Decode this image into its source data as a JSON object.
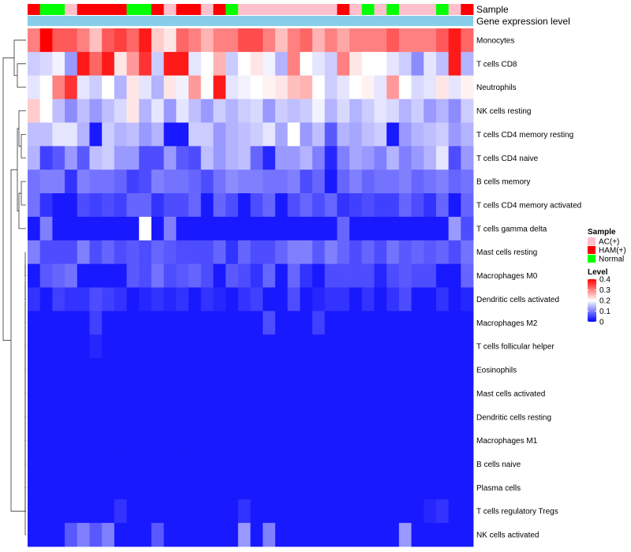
{
  "chart_data": {
    "type": "heatmap",
    "title": "",
    "annotation_tracks": [
      "Sample",
      "Gene expression level"
    ],
    "row_labels": [
      "Monocytes",
      "T cells CD8",
      "Neutrophils",
      "NK cells resting",
      "T cells CD4 memory resting",
      "T cells CD4 naive",
      "B cells memory",
      "T cells CD4 memory activated",
      "T cells gamma delta",
      "Mast cells resting",
      "Macrophages M0",
      "Dendritic cells activated",
      "Macrophages M2",
      "T cells follicular helper",
      "Eosinophils",
      "Mast cells activated",
      "Dendritic cells resting",
      "Macrophages M1",
      "B cells naive",
      "Plasma cells",
      "T cells regulatory  Tregs",
      "NK cells activated"
    ],
    "sample_groups": [
      "HAM",
      "NOR",
      "NOR",
      "AC",
      "HAM",
      "HAM",
      "HAM",
      "HAM",
      "NOR",
      "NOR",
      "HAM",
      "AC",
      "HAM",
      "HAM",
      "AC",
      "HAM",
      "NOR",
      "AC",
      "AC",
      "AC",
      "AC",
      "AC",
      "AC",
      "AC",
      "AC",
      "HAM",
      "AC",
      "NOR",
      "AC",
      "NOR",
      "AC",
      "AC",
      "AC",
      "NOR",
      "AC",
      "HAM"
    ],
    "sample_legend": {
      "title": "Sample",
      "items": [
        {
          "key": "AC",
          "label": "AC(+)",
          "color": "#ffc0cb"
        },
        {
          "key": "HAM",
          "label": "HAM(+)",
          "color": "#ff0000"
        },
        {
          "key": "NOR",
          "label": "Normal",
          "color": "#00ff00"
        }
      ]
    },
    "expression_track_color": "#87ceeb",
    "color_scale": {
      "title": "Level",
      "min": 0,
      "max": 0.4,
      "ticks": [
        0.4,
        0.3,
        0.2,
        0.1,
        0
      ],
      "tick_labels": [
        "0.4",
        "0.3",
        "0.2",
        "0.1",
        "0"
      ],
      "colors": [
        "#0000ff",
        "#ffffff",
        "#ff0000"
      ]
    },
    "values": [
      [
        0.3,
        0.4,
        0.33,
        0.33,
        0.3,
        0.25,
        0.33,
        0.35,
        0.32,
        0.38,
        0.24,
        0.22,
        0.32,
        0.3,
        0.26,
        0.3,
        0.3,
        0.34,
        0.34,
        0.3,
        0.25,
        0.3,
        0.32,
        0.26,
        0.3,
        0.27,
        0.3,
        0.3,
        0.3,
        0.33,
        0.3,
        0.3,
        0.3,
        0.33,
        0.38,
        0.32
      ],
      [
        0.16,
        0.17,
        0.19,
        0.12,
        0.38,
        0.32,
        0.38,
        0.22,
        0.28,
        0.36,
        0.16,
        0.38,
        0.38,
        0.18,
        0.2,
        0.26,
        0.16,
        0.2,
        0.22,
        0.19,
        0.14,
        0.3,
        0.2,
        0.18,
        0.16,
        0.3,
        0.22,
        0.2,
        0.2,
        0.18,
        0.16,
        0.11,
        0.18,
        0.15,
        0.38,
        0.14
      ],
      [
        0.18,
        0.2,
        0.3,
        0.36,
        0.18,
        0.16,
        0.2,
        0.14,
        0.22,
        0.18,
        0.14,
        0.22,
        0.19,
        0.28,
        0.2,
        0.38,
        0.18,
        0.19,
        0.2,
        0.21,
        0.22,
        0.25,
        0.26,
        0.2,
        0.16,
        0.18,
        0.2,
        0.21,
        0.18,
        0.28,
        0.2,
        0.17,
        0.18,
        0.22,
        0.18,
        0.21
      ],
      [
        0.24,
        0.2,
        0.15,
        0.11,
        0.15,
        0.12,
        0.15,
        0.17,
        0.22,
        0.14,
        0.18,
        0.12,
        0.18,
        0.15,
        0.12,
        0.16,
        0.14,
        0.16,
        0.17,
        0.12,
        0.16,
        0.15,
        0.16,
        0.19,
        0.14,
        0.17,
        0.14,
        0.16,
        0.18,
        0.17,
        0.14,
        0.16,
        0.12,
        0.14,
        0.11,
        0.16
      ],
      [
        0.15,
        0.15,
        0.18,
        0.18,
        0.14,
        0.02,
        0.16,
        0.14,
        0.15,
        0.12,
        0.14,
        0.02,
        0.02,
        0.16,
        0.16,
        0.12,
        0.14,
        0.15,
        0.16,
        0.18,
        0.13,
        0.2,
        0.12,
        0.15,
        0.07,
        0.14,
        0.13,
        0.15,
        0.16,
        0.02,
        0.12,
        0.14,
        0.15,
        0.16,
        0.12,
        0.14
      ],
      [
        0.14,
        0.05,
        0.07,
        0.12,
        0.07,
        0.15,
        0.16,
        0.12,
        0.12,
        0.06,
        0.06,
        0.12,
        0.07,
        0.06,
        0.15,
        0.12,
        0.14,
        0.15,
        0.08,
        0.03,
        0.12,
        0.12,
        0.14,
        0.1,
        0.03,
        0.1,
        0.13,
        0.12,
        0.1,
        0.14,
        0.1,
        0.12,
        0.14,
        0.18,
        0.06,
        0.12
      ],
      [
        0.09,
        0.1,
        0.1,
        0.04,
        0.1,
        0.09,
        0.09,
        0.08,
        0.05,
        0.06,
        0.1,
        0.09,
        0.09,
        0.08,
        0.06,
        0.09,
        0.11,
        0.1,
        0.1,
        0.09,
        0.09,
        0.1,
        0.06,
        0.08,
        0.02,
        0.08,
        0.1,
        0.08,
        0.09,
        0.09,
        0.1,
        0.08,
        0.09,
        0.1,
        0.08,
        0.09
      ],
      [
        0.09,
        0.04,
        0.02,
        0.02,
        0.06,
        0.05,
        0.06,
        0.05,
        0.08,
        0.08,
        0.04,
        0.06,
        0.06,
        0.08,
        0.02,
        0.08,
        0.06,
        0.02,
        0.06,
        0.08,
        0.02,
        0.06,
        0.08,
        0.06,
        0.08,
        0.04,
        0.05,
        0.06,
        0.05,
        0.05,
        0.08,
        0.06,
        0.04,
        0.08,
        0.02,
        0.08
      ],
      [
        0.02,
        0.1,
        0.02,
        0.02,
        0.02,
        0.02,
        0.02,
        0.02,
        0.02,
        0.2,
        0.02,
        0.1,
        0.02,
        0.02,
        0.02,
        0.02,
        0.02,
        0.02,
        0.02,
        0.02,
        0.02,
        0.02,
        0.02,
        0.02,
        0.02,
        0.08,
        0.02,
        0.02,
        0.02,
        0.02,
        0.02,
        0.02,
        0.02,
        0.02,
        0.12,
        0.06
      ],
      [
        0.1,
        0.06,
        0.06,
        0.06,
        0.1,
        0.06,
        0.08,
        0.06,
        0.07,
        0.06,
        0.08,
        0.07,
        0.06,
        0.06,
        0.06,
        0.08,
        0.04,
        0.08,
        0.06,
        0.06,
        0.08,
        0.1,
        0.1,
        0.07,
        0.1,
        0.08,
        0.06,
        0.08,
        0.06,
        0.09,
        0.07,
        0.08,
        0.07,
        0.08,
        0.06,
        0.09
      ],
      [
        0.02,
        0.07,
        0.08,
        0.09,
        0.02,
        0.02,
        0.02,
        0.02,
        0.07,
        0.06,
        0.09,
        0.06,
        0.07,
        0.08,
        0.06,
        0.02,
        0.07,
        0.06,
        0.04,
        0.08,
        0.02,
        0.08,
        0.04,
        0.02,
        0.06,
        0.06,
        0.06,
        0.06,
        0.03,
        0.06,
        0.07,
        0.06,
        0.06,
        0.02,
        0.02,
        0.08
      ],
      [
        0.04,
        0.02,
        0.05,
        0.04,
        0.04,
        0.06,
        0.05,
        0.04,
        0.02,
        0.03,
        0.04,
        0.03,
        0.04,
        0.02,
        0.04,
        0.03,
        0.02,
        0.04,
        0.05,
        0.02,
        0.02,
        0.06,
        0.02,
        0.03,
        0.04,
        0.04,
        0.02,
        0.04,
        0.02,
        0.04,
        0.06,
        0.02,
        0.02,
        0.04,
        0.02,
        0.03
      ],
      [
        0.02,
        0.02,
        0.02,
        0.02,
        0.02,
        0.05,
        0.02,
        0.02,
        0.02,
        0.02,
        0.02,
        0.02,
        0.02,
        0.02,
        0.02,
        0.02,
        0.02,
        0.02,
        0.02,
        0.06,
        0.02,
        0.02,
        0.02,
        0.05,
        0.02,
        0.02,
        0.02,
        0.02,
        0.02,
        0.02,
        0.02,
        0.02,
        0.02,
        0.02,
        0.02,
        0.02
      ],
      [
        0.02,
        0.02,
        0.02,
        0.02,
        0.02,
        0.03,
        0.02,
        0.02,
        0.02,
        0.02,
        0.02,
        0.02,
        0.02,
        0.02,
        0.02,
        0.02,
        0.02,
        0.02,
        0.02,
        0.02,
        0.02,
        0.02,
        0.02,
        0.02,
        0.02,
        0.02,
        0.02,
        0.02,
        0.02,
        0.02,
        0.02,
        0.02,
        0.02,
        0.02,
        0.02,
        0.02
      ],
      [
        0.02,
        0.02,
        0.02,
        0.02,
        0.02,
        0.02,
        0.02,
        0.02,
        0.02,
        0.02,
        0.02,
        0.02,
        0.02,
        0.02,
        0.02,
        0.02,
        0.02,
        0.02,
        0.02,
        0.02,
        0.02,
        0.02,
        0.02,
        0.02,
        0.02,
        0.02,
        0.02,
        0.02,
        0.02,
        0.02,
        0.02,
        0.02,
        0.02,
        0.02,
        0.02,
        0.02
      ],
      [
        0.02,
        0.02,
        0.02,
        0.02,
        0.02,
        0.02,
        0.02,
        0.02,
        0.02,
        0.02,
        0.02,
        0.02,
        0.02,
        0.02,
        0.02,
        0.02,
        0.02,
        0.02,
        0.02,
        0.02,
        0.02,
        0.02,
        0.02,
        0.02,
        0.02,
        0.02,
        0.02,
        0.02,
        0.02,
        0.02,
        0.02,
        0.02,
        0.02,
        0.02,
        0.02,
        0.02
      ],
      [
        0.02,
        0.02,
        0.02,
        0.02,
        0.02,
        0.02,
        0.02,
        0.02,
        0.02,
        0.02,
        0.02,
        0.02,
        0.02,
        0.02,
        0.02,
        0.02,
        0.02,
        0.02,
        0.02,
        0.02,
        0.02,
        0.02,
        0.02,
        0.02,
        0.02,
        0.02,
        0.02,
        0.02,
        0.02,
        0.02,
        0.02,
        0.02,
        0.02,
        0.02,
        0.02,
        0.02
      ],
      [
        0.02,
        0.02,
        0.02,
        0.02,
        0.02,
        0.02,
        0.02,
        0.02,
        0.02,
        0.02,
        0.02,
        0.02,
        0.02,
        0.02,
        0.02,
        0.02,
        0.02,
        0.02,
        0.02,
        0.02,
        0.02,
        0.02,
        0.02,
        0.02,
        0.02,
        0.02,
        0.02,
        0.02,
        0.02,
        0.02,
        0.02,
        0.02,
        0.02,
        0.02,
        0.02,
        0.02
      ],
      [
        0.02,
        0.02,
        0.02,
        0.02,
        0.02,
        0.02,
        0.02,
        0.02,
        0.02,
        0.02,
        0.02,
        0.02,
        0.02,
        0.02,
        0.02,
        0.02,
        0.02,
        0.02,
        0.02,
        0.02,
        0.02,
        0.02,
        0.02,
        0.02,
        0.02,
        0.02,
        0.02,
        0.02,
        0.02,
        0.02,
        0.02,
        0.02,
        0.02,
        0.02,
        0.02,
        0.02
      ],
      [
        0.02,
        0.02,
        0.02,
        0.02,
        0.02,
        0.02,
        0.02,
        0.02,
        0.02,
        0.02,
        0.02,
        0.02,
        0.02,
        0.02,
        0.02,
        0.02,
        0.02,
        0.02,
        0.02,
        0.02,
        0.02,
        0.02,
        0.02,
        0.02,
        0.02,
        0.02,
        0.02,
        0.02,
        0.02,
        0.02,
        0.02,
        0.02,
        0.02,
        0.02,
        0.02,
        0.02
      ],
      [
        0.02,
        0.02,
        0.02,
        0.02,
        0.02,
        0.02,
        0.02,
        0.04,
        0.02,
        0.02,
        0.02,
        0.02,
        0.02,
        0.02,
        0.02,
        0.02,
        0.02,
        0.04,
        0.02,
        0.02,
        0.02,
        0.02,
        0.02,
        0.02,
        0.02,
        0.02,
        0.02,
        0.02,
        0.02,
        0.02,
        0.02,
        0.02,
        0.03,
        0.04,
        0.02,
        0.02
      ],
      [
        0.02,
        0.02,
        0.02,
        0.07,
        0.1,
        0.07,
        0.1,
        0.02,
        0.02,
        0.02,
        0.07,
        0.02,
        0.02,
        0.02,
        0.02,
        0.02,
        0.02,
        0.12,
        0.02,
        0.1,
        0.02,
        0.02,
        0.02,
        0.02,
        0.02,
        0.02,
        0.02,
        0.02,
        0.02,
        0.02,
        0.12,
        0.02,
        0.02,
        0.02,
        0.02,
        0.02
      ]
    ]
  }
}
